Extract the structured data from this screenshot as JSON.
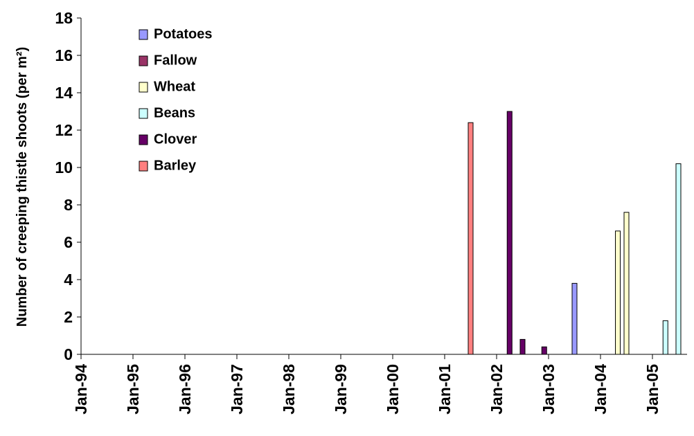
{
  "chart_data": {
    "type": "bar",
    "y_label": "Number of creeping thistle shoots (per m²)",
    "xlim": [
      "1994-01",
      "2005-09"
    ],
    "xticks": [
      {
        "value": "1994-01",
        "label": "Jan-94"
      },
      {
        "value": "1995-01",
        "label": "Jan-95"
      },
      {
        "value": "1996-01",
        "label": "Jan-96"
      },
      {
        "value": "1997-01",
        "label": "Jan-97"
      },
      {
        "value": "1998-01",
        "label": "Jan-98"
      },
      {
        "value": "1999-01",
        "label": "Jan-99"
      },
      {
        "value": "2000-01",
        "label": "Jan-00"
      },
      {
        "value": "2001-01",
        "label": "Jan-01"
      },
      {
        "value": "2002-01",
        "label": "Jan-02"
      },
      {
        "value": "2003-01",
        "label": "Jan-03"
      },
      {
        "value": "2004-01",
        "label": "Jan-04"
      },
      {
        "value": "2005-01",
        "label": "Jan-05"
      }
    ],
    "ylim": [
      0,
      18
    ],
    "yticks": [
      0,
      2,
      4,
      6,
      8,
      10,
      12,
      14,
      16,
      18
    ],
    "series": [
      {
        "name": "Potatoes",
        "color": "#9999ff",
        "x": [
          "2003-07"
        ],
        "values": [
          3.8
        ]
      },
      {
        "name": "Fallow",
        "color": "#993366",
        "x": [],
        "values": []
      },
      {
        "name": "Wheat",
        "color": "#ffffcc",
        "x": [
          "2004-05",
          "2004-07"
        ],
        "values": [
          6.6,
          7.6
        ]
      },
      {
        "name": "Beans",
        "color": "#ccffff",
        "x": [
          "2005-04",
          "2005-07"
        ],
        "values": [
          1.8,
          10.2
        ]
      },
      {
        "name": "Clover",
        "color": "#660066",
        "x": [
          "2002-04",
          "2002-07",
          "2002-12"
        ],
        "values": [
          13,
          0.8,
          0.4
        ]
      },
      {
        "name": "Barley",
        "color": "#ff8080",
        "x": [
          "2001-07"
        ],
        "values": [
          12.4
        ]
      }
    ]
  }
}
